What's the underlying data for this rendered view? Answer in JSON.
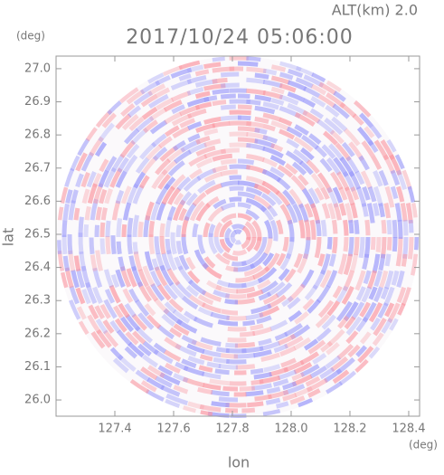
{
  "chart_data": {
    "type": "ppi",
    "title": "2017/10/24 05:06:00",
    "subtitle": "ALT(km)  2.0",
    "x_label": "lon",
    "y_label": "lat",
    "x_unit": "(deg)",
    "y_unit": "(deg)",
    "xlim": [
      127.2,
      128.437
    ],
    "ylim": [
      25.951,
      27.038
    ],
    "xticks": [
      127.4,
      127.6,
      127.8,
      {
        "value": 128.0,
        "label": "128.0"
      },
      128.2,
      128.4
    ],
    "yticks": [
      {
        "value": 26.0,
        "label": "26.0"
      },
      26.1,
      26.2,
      26.3,
      26.4,
      26.5,
      26.6,
      26.7,
      26.8,
      26.9,
      {
        "value": 27.0,
        "label": "27.0"
      }
    ]
  }
}
